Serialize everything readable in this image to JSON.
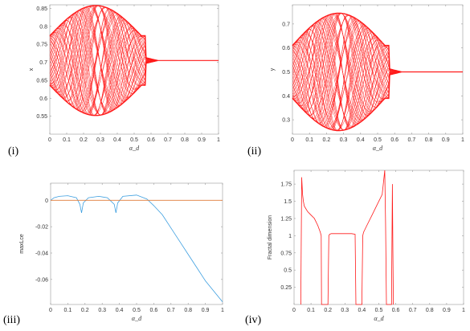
{
  "colors": {
    "red": "#ff1a1a",
    "blue": "#3d9fe0",
    "orange": "#e07b39",
    "axis": "#9a9a9a",
    "text": "#333333"
  },
  "chart_data": [
    {
      "type": "scatter",
      "panel_label": "(i)",
      "xlabel": "α_d",
      "ylabel": "x",
      "xlim": [
        0,
        1
      ],
      "ylim": [
        0.5,
        0.86
      ],
      "xticks": [
        "0",
        "0.1",
        "0.2",
        "0.3",
        "0.4",
        "0.5",
        "0.6",
        "0.7",
        "0.8",
        "0.9",
        "1"
      ],
      "yticks": [
        "0.55",
        "0.6",
        "0.65",
        "0.7",
        "0.75",
        "0.8",
        "0.85"
      ],
      "ytick_values": [
        0.55,
        0.6,
        0.65,
        0.7,
        0.75,
        0.8,
        0.85
      ],
      "envelope": {
        "center": 0.705,
        "amplitude": 0.153,
        "onset": 0.0,
        "end": 0.57,
        "tail_end": 0.64,
        "steady": 0.705
      },
      "color": "red"
    },
    {
      "type": "scatter",
      "panel_label": "(ii)",
      "xlabel": "α_d",
      "ylabel": "y",
      "xlim": [
        0,
        1
      ],
      "ylim": [
        0.24,
        0.78
      ],
      "xticks": [
        "0",
        "0.1",
        "0.2",
        "0.3",
        "0.4",
        "0.5",
        "0.6",
        "0.7",
        "0.8",
        "0.9",
        "1"
      ],
      "yticks": [
        "0.3",
        "0.4",
        "0.5",
        "0.6",
        "0.7"
      ],
      "ytick_values": [
        0.3,
        0.4,
        0.5,
        0.6,
        0.7
      ],
      "envelope": {
        "center": 0.5,
        "amplitude": 0.245,
        "onset": 0.0,
        "end": 0.57,
        "tail_end": 0.64,
        "steady": 0.5
      },
      "color": "red"
    },
    {
      "type": "line",
      "panel_label": "(iii)",
      "xlabel": "α_d",
      "ylabel": "maxLce",
      "xlim": [
        0,
        1
      ],
      "ylim": [
        -0.079,
        0.013
      ],
      "xticks": [
        "0",
        "0.1",
        "0.2",
        "0.3",
        "0.4",
        "0.5",
        "0.6",
        "0.7",
        "0.8",
        "0.9",
        "1"
      ],
      "yticks": [
        "0",
        "-0.02",
        "-0.04",
        "-0.06"
      ],
      "ytick_values": [
        0,
        -0.02,
        -0.04,
        -0.06
      ],
      "series": [
        {
          "color": "blue",
          "x": [
            0,
            0.02,
            0.05,
            0.1,
            0.15,
            0.17,
            0.18,
            0.19,
            0.22,
            0.28,
            0.33,
            0.37,
            0.38,
            0.39,
            0.42,
            0.5,
            0.56,
            0.6,
            0.65,
            0.7,
            0.75,
            0.8,
            0.85,
            0.9,
            0.95,
            1.0
          ],
          "y": [
            0.0,
            0.002,
            0.003,
            0.0035,
            0.002,
            -0.003,
            -0.0095,
            -0.002,
            0.002,
            0.003,
            0.002,
            -0.003,
            -0.0095,
            -0.002,
            0.003,
            0.004,
            0.001,
            -0.004,
            -0.011,
            -0.021,
            -0.031,
            -0.041,
            -0.051,
            -0.061,
            -0.069,
            -0.077
          ]
        },
        {
          "color": "orange",
          "x": [
            0,
            1
          ],
          "y": [
            0,
            0
          ]
        }
      ]
    },
    {
      "type": "line",
      "panel_label": "(iv)",
      "xlabel": "α_d",
      "ylabel": "Fractal dimension",
      "xlim": [
        0,
        1
      ],
      "ylim": [
        0,
        1.95
      ],
      "xticks": [
        "0",
        "0.1",
        "0.2",
        "0.3",
        "0.4",
        "0.5",
        "0.6",
        "0.7",
        "0.8",
        "0.9",
        "1"
      ],
      "yticks": [
        "0.25",
        "0.5",
        "0.75",
        "1",
        "1.25",
        "1.5",
        "1.75"
      ],
      "ytick_values": [
        0.25,
        0.5,
        0.75,
        1,
        1.25,
        1.5,
        1.75
      ],
      "series": [
        {
          "color": "red",
          "x": [
            0.04,
            0.045,
            0.05,
            0.055,
            0.06,
            0.08,
            0.1,
            0.12,
            0.14,
            0.155,
            0.16,
            0.162,
            0.19,
            0.2,
            0.205,
            0.21,
            0.22,
            0.24,
            0.26,
            0.3,
            0.34,
            0.36,
            0.365,
            0.37,
            0.4,
            0.405,
            0.41,
            0.43,
            0.46,
            0.49,
            0.52,
            0.535,
            0.54,
            0.545,
            0.55,
            0.575,
            0.58,
            0.583,
            0.586
          ],
          "y": [
            0,
            1.85,
            1.6,
            1.5,
            1.43,
            1.35,
            1.3,
            1.25,
            1.15,
            1.05,
            1.0,
            0,
            0,
            0,
            1.0,
            1.02,
            1.03,
            1.03,
            1.03,
            1.03,
            1.03,
            1.02,
            0,
            0,
            0,
            1.0,
            1.05,
            1.15,
            1.3,
            1.45,
            1.6,
            1.95,
            1.2,
            0,
            0,
            0,
            1.75,
            0.8,
            0
          ]
        }
      ]
    }
  ]
}
